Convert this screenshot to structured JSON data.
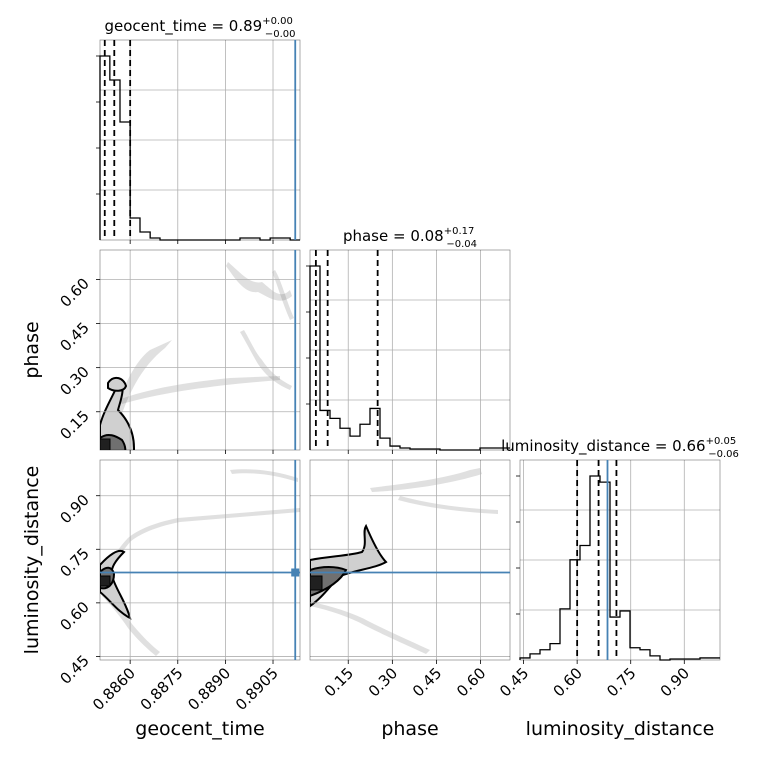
{
  "chart_data": {
    "type": "corner",
    "truth_color": "#4682b4",
    "parameters": [
      {
        "name": "geocent_time",
        "axis_label": "geocent_time",
        "title_text": "geocent_time = 0.89",
        "title_sup": "+0.00",
        "title_sub": "−0.00",
        "range": [
          0.88505,
          0.89135
        ],
        "ticks": [
          0.886,
          0.8875,
          0.889,
          0.8905
        ],
        "tick_labels": [
          "0.8860",
          "0.8875",
          "0.8890",
          "0.8905"
        ],
        "quantiles": [
          0.8852,
          0.8855,
          0.886
        ],
        "truth": 0.8912,
        "hist_edges": [
          0.88505,
          0.88536,
          0.88568,
          0.886,
          0.88631,
          0.88663,
          0.88694,
          0.88726,
          0.88757,
          0.88789,
          0.8882,
          0.88852,
          0.88883,
          0.88915,
          0.88946,
          0.88978,
          0.89009,
          0.89041,
          0.89072,
          0.89104,
          0.89135
        ],
        "hist_values": [
          0.92,
          0.8,
          0.59,
          0.11,
          0.04,
          0.01,
          0.0,
          0.0,
          0.0,
          0.0,
          0.0,
          0.0,
          0.0,
          0.0,
          0.01,
          0.01,
          0.0,
          0.01,
          0.01,
          0.0
        ]
      },
      {
        "name": "phase",
        "axis_label": "phase",
        "title_text": "phase = 0.08",
        "title_sup": "+0.17",
        "title_sub": "−0.04",
        "range": [
          0.02,
          0.7
        ],
        "ticks": [
          0.15,
          0.3,
          0.45,
          0.6
        ],
        "tick_labels": [
          "0.15",
          "0.30",
          "0.45",
          "0.60"
        ],
        "quantiles": [
          0.04,
          0.08,
          0.25
        ],
        "truth": null,
        "hist_edges": [
          0.02,
          0.054,
          0.088,
          0.122,
          0.156,
          0.19,
          0.224,
          0.258,
          0.292,
          0.326,
          0.36,
          0.394,
          0.428,
          0.462,
          0.496,
          0.53,
          0.564,
          0.598,
          0.632,
          0.666,
          0.7
        ],
        "hist_values": [
          0.93,
          0.2,
          0.16,
          0.11,
          0.07,
          0.13,
          0.21,
          0.06,
          0.02,
          0.01,
          0.005,
          0.005,
          0.005,
          0.0,
          0.0,
          0.0,
          0.0,
          0.01,
          0.01,
          0.01
        ]
      },
      {
        "name": "luminosity_distance",
        "axis_label": "luminosity_distance",
        "title_text": "luminosity_distance = 0.66",
        "title_sup": "+0.05",
        "title_sub": "−0.06",
        "range": [
          0.44,
          1.0
        ],
        "ticks": [
          0.45,
          0.6,
          0.75,
          0.9
        ],
        "tick_labels": [
          "0.45",
          "0.60",
          "0.75",
          "0.90"
        ],
        "quantiles": [
          0.6,
          0.66,
          0.71
        ],
        "truth": 0.685,
        "hist_edges": [
          0.44,
          0.468,
          0.496,
          0.524,
          0.552,
          0.58,
          0.608,
          0.636,
          0.664,
          0.692,
          0.72,
          0.748,
          0.776,
          0.804,
          0.832,
          0.86,
          0.888,
          0.916,
          0.944,
          0.972,
          1.0
        ],
        "hist_values": [
          0.01,
          0.03,
          0.05,
          0.08,
          0.25,
          0.49,
          0.56,
          0.9,
          0.87,
          0.21,
          0.24,
          0.06,
          0.05,
          0.02,
          0.0,
          0.005,
          0.005,
          0.005,
          0.01,
          0.01
        ]
      }
    ],
    "pairs": [
      {
        "x": "geocent_time",
        "y": "phase"
      },
      {
        "x": "geocent_time",
        "y": "luminosity_distance"
      },
      {
        "x": "phase",
        "y": "luminosity_distance"
      }
    ]
  }
}
